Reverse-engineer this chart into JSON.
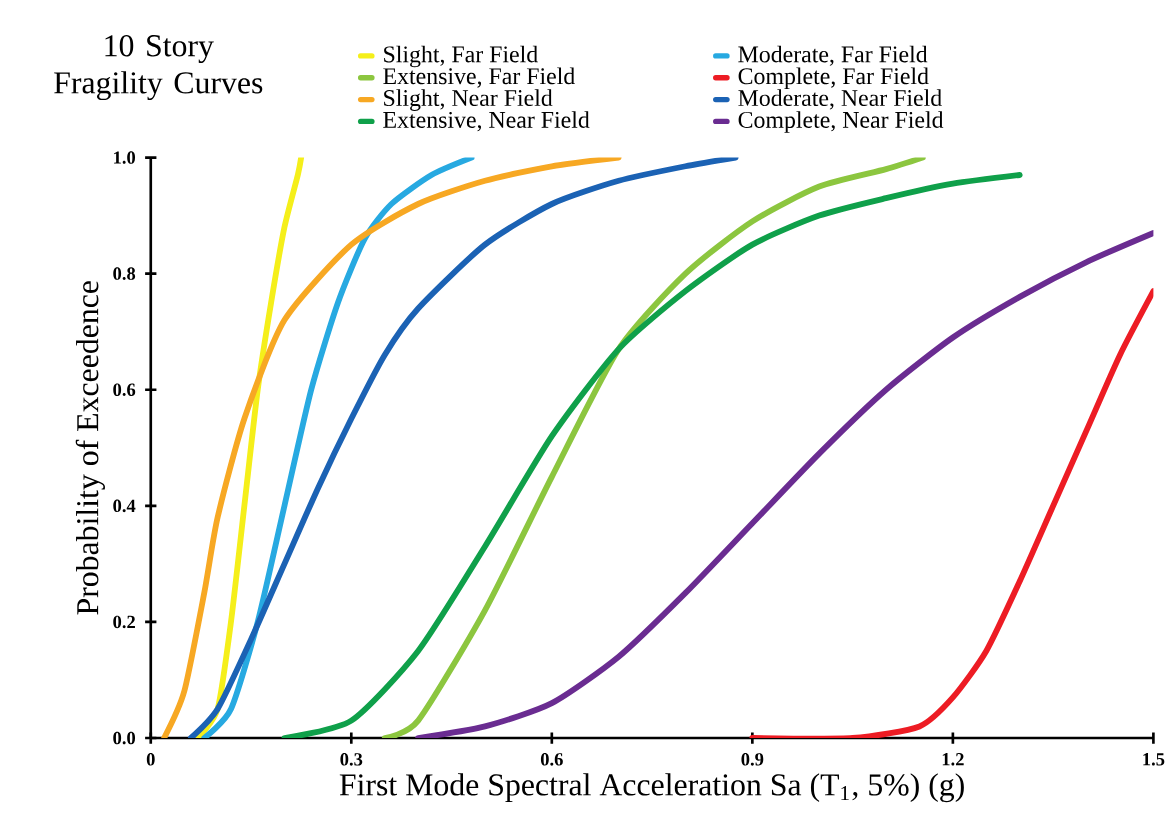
{
  "chart_data": {
    "type": "line",
    "title": "10 Story Fragility Curves",
    "xlabel": "First Mode Spectral Acceleration Sa (T$_{1}$, 5%) (g)",
    "ylabel": "Probability of Exceedence",
    "xlim": [
      0,
      1.5
    ],
    "ylim": [
      0,
      1.0
    ],
    "xticks": [
      0,
      0.3,
      0.6,
      0.9,
      1.2,
      1.5
    ],
    "yticks": [
      {
        "value": 0,
        "label": "0.0"
      },
      {
        "value": 0.2,
        "label": "0.2"
      },
      {
        "value": 0.4,
        "label": "0.4"
      },
      {
        "value": 0.6,
        "label": "0.6"
      },
      {
        "value": 0.8,
        "label": "0.8"
      },
      {
        "value": 1.0,
        "label": "1.0"
      }
    ],
    "grid": false,
    "legend": "top",
    "marker": "none",
    "line_style": "solid",
    "series": [
      {
        "name": "Slight, Far Field",
        "color": "#f5ef1a",
        "x": [
          0.07,
          0.1,
          0.12,
          0.14,
          0.16,
          0.18,
          0.2,
          0.22,
          0.225
        ],
        "values": [
          0,
          0.05,
          0.2,
          0.4,
          0.6,
          0.75,
          0.88,
          0.97,
          1.0
        ]
      },
      {
        "name": "Moderate, Far Field",
        "color": "#27a9e1",
        "x": [
          0.08,
          0.12,
          0.16,
          0.2,
          0.24,
          0.28,
          0.32,
          0.36,
          0.42,
          0.48
        ],
        "values": [
          0,
          0.05,
          0.2,
          0.4,
          0.6,
          0.75,
          0.86,
          0.92,
          0.97,
          1.0
        ]
      },
      {
        "name": "Extensive, Far Field",
        "color": "#8cc63f",
        "x": [
          0.35,
          0.4,
          0.5,
          0.6,
          0.7,
          0.8,
          0.9,
          1.0,
          1.1,
          1.155
        ],
        "values": [
          0,
          0.03,
          0.22,
          0.45,
          0.67,
          0.8,
          0.89,
          0.95,
          0.98,
          1.0
        ]
      },
      {
        "name": "Complete, Far Field",
        "color": "#ed1c24",
        "x": [
          0.9,
          1.05,
          1.15,
          1.2,
          1.25,
          1.3,
          1.35,
          1.4,
          1.45,
          1.5
        ],
        "values": [
          0,
          0,
          0.02,
          0.07,
          0.15,
          0.27,
          0.4,
          0.53,
          0.66,
          0.77
        ]
      },
      {
        "name": "Slight, Near Field",
        "color": "#f7a823",
        "x": [
          0.02,
          0.05,
          0.08,
          0.1,
          0.14,
          0.2,
          0.3,
          0.4,
          0.5,
          0.6,
          0.7
        ],
        "values": [
          0,
          0.08,
          0.25,
          0.38,
          0.55,
          0.72,
          0.85,
          0.92,
          0.96,
          0.985,
          1.0
        ]
      },
      {
        "name": "Moderate, Near Field",
        "color": "#1b62b4",
        "x": [
          0.06,
          0.1,
          0.15,
          0.2,
          0.25,
          0.3,
          0.35,
          0.4,
          0.5,
          0.6,
          0.7,
          0.8,
          0.875
        ],
        "values": [
          0,
          0.05,
          0.17,
          0.3,
          0.43,
          0.55,
          0.66,
          0.74,
          0.85,
          0.92,
          0.96,
          0.985,
          1.0
        ]
      },
      {
        "name": "Extensive, Near Field",
        "color": "#0fa04a",
        "x": [
          0.2,
          0.3,
          0.4,
          0.5,
          0.6,
          0.7,
          0.8,
          0.9,
          1.0,
          1.1,
          1.2,
          1.3
        ],
        "values": [
          0,
          0.03,
          0.15,
          0.33,
          0.52,
          0.67,
          0.77,
          0.85,
          0.9,
          0.93,
          0.955,
          0.97
        ]
      },
      {
        "name": "Complete, Near Field",
        "color": "#6a2c91",
        "x": [
          0.4,
          0.5,
          0.6,
          0.7,
          0.8,
          0.9,
          1.0,
          1.1,
          1.2,
          1.3,
          1.4,
          1.5
        ],
        "values": [
          0,
          0.02,
          0.06,
          0.14,
          0.25,
          0.37,
          0.49,
          0.6,
          0.69,
          0.76,
          0.82,
          0.87
        ]
      }
    ]
  }
}
